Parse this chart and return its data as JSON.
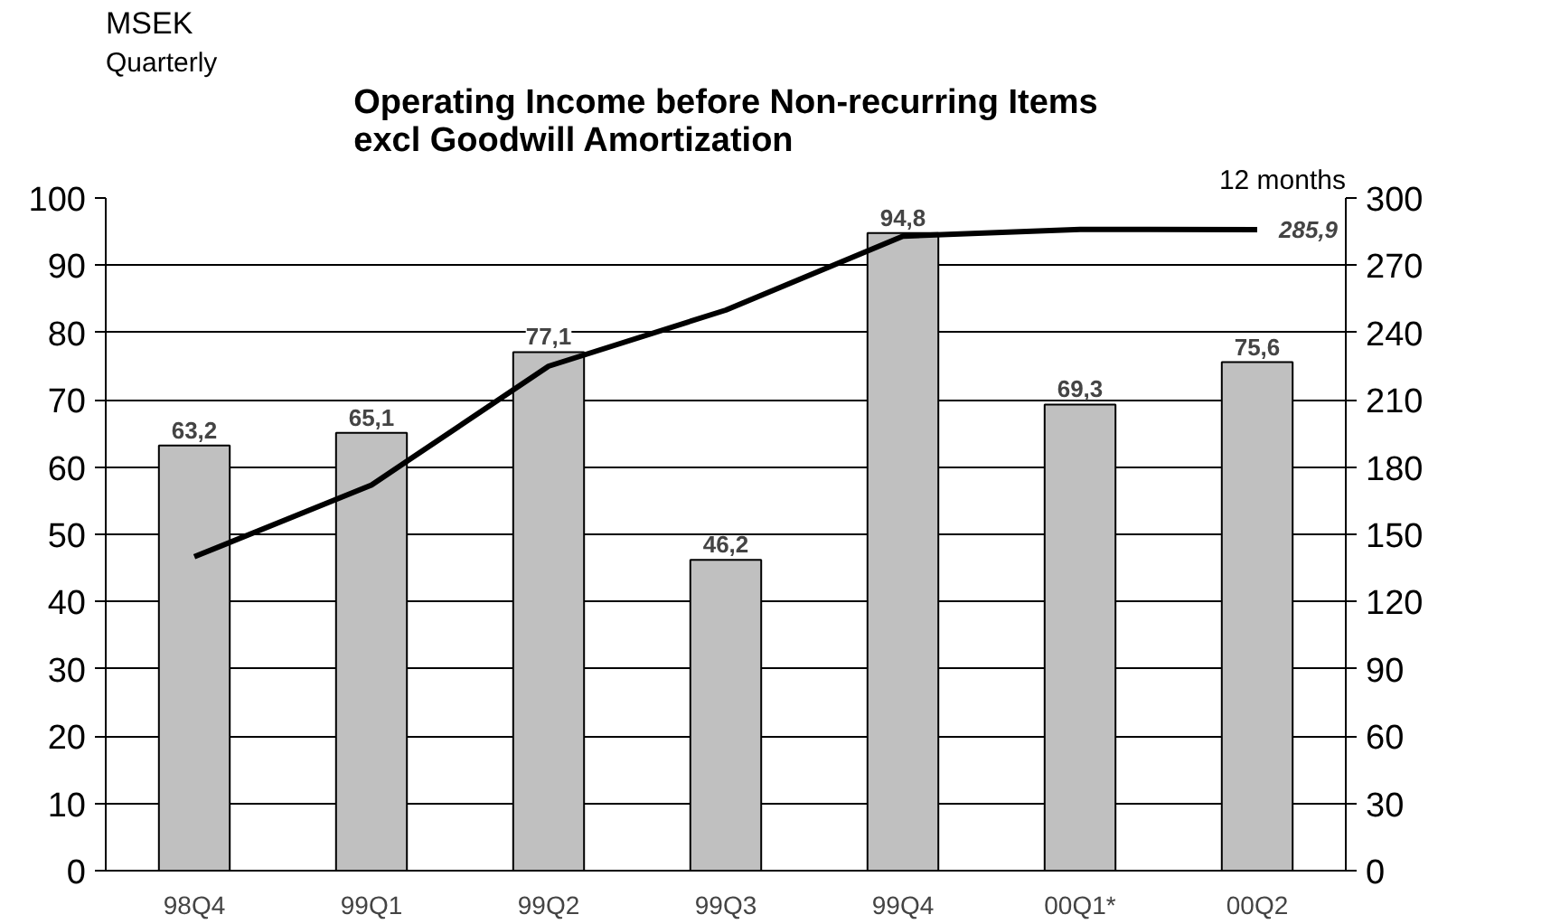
{
  "chart_data": {
    "type": "bar",
    "title": "Operating Income before Non-recurring Items\nexcl Goodwill Amortization",
    "ylabel": "MSEK",
    "y2label": "12 months",
    "annotations": [
      "Quarterly"
    ],
    "categories": [
      "98Q4",
      "99Q1",
      "99Q2",
      "99Q3",
      "99Q4",
      "00Q1*",
      "00Q2"
    ],
    "ylim": [
      0,
      100
    ],
    "yticks": [
      0,
      10,
      20,
      30,
      40,
      50,
      60,
      70,
      80,
      90,
      100
    ],
    "y2lim": [
      0,
      300
    ],
    "y2ticks": [
      0,
      30,
      60,
      90,
      120,
      150,
      180,
      210,
      240,
      270,
      300
    ],
    "grid": "y",
    "series": [
      {
        "color": "#c0c0c0",
        "values": [
          63.2,
          65.1,
          77.1,
          46.2,
          94.8,
          69.3,
          75.6
        ],
        "value_labels": [
          "63,2",
          "65,1",
          "77,1",
          "46,2",
          "94,8",
          "69,3",
          "75,6"
        ]
      },
      {
        "type": "line",
        "axis": "y2",
        "color": "#000000",
        "values": [
          140,
          172,
          225,
          250,
          283,
          286,
          285.9
        ],
        "value_labels": [
          null,
          null,
          null,
          null,
          null,
          null,
          "285,9"
        ]
      }
    ]
  }
}
